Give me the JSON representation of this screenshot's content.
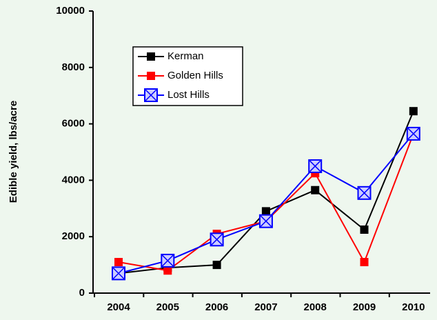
{
  "chart_data": {
    "type": "line",
    "y_label": "Edible yield, lbs/acre",
    "categories": [
      "2004",
      "2005",
      "2006",
      "2007",
      "2008",
      "2009",
      "2010"
    ],
    "series": [
      {
        "name": "Kerman",
        "color": "#000000",
        "marker": "square",
        "values": [
          700,
          900,
          1000,
          2900,
          3650,
          2250,
          6450
        ]
      },
      {
        "name": "Golden Hills",
        "color": "#ff0000",
        "marker": "square",
        "values": [
          1100,
          800,
          2100,
          2550,
          4250,
          1100,
          5650
        ]
      },
      {
        "name": "Lost Hills",
        "color": "#0000ff",
        "marker": "square-x",
        "values": [
          700,
          1150,
          1900,
          2550,
          4500,
          3550,
          5650
        ]
      }
    ],
    "ylim": [
      0,
      10000
    ],
    "yticks": [
      0,
      2000,
      4000,
      6000,
      8000,
      10000
    ],
    "grid": false
  }
}
